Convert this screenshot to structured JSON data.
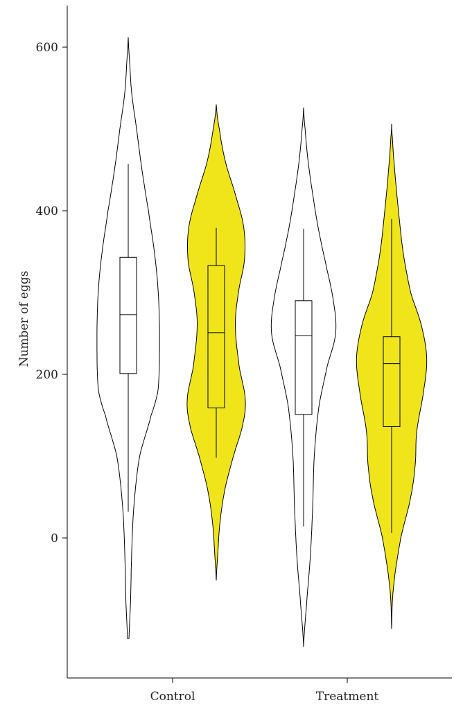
{
  "chart_data": {
    "type": "violin",
    "ylabel": "Number of eggs",
    "xlabel": "",
    "categories": [
      "Control",
      "Treatment"
    ],
    "ylim": [
      -165,
      640
    ],
    "yticks": [
      0,
      200,
      400,
      600
    ],
    "colors": {
      "white": "#ffffff",
      "yellow": "#f0e51a"
    },
    "groups": [
      {
        "category": "Control",
        "fill": "white",
        "range": [
          -123,
          612
        ],
        "density": [
          [
            -123,
            0.02
          ],
          [
            -80,
            0.06
          ],
          [
            -20,
            0.09
          ],
          [
            40,
            0.15
          ],
          [
            100,
            0.3
          ],
          [
            150,
            0.6
          ],
          [
            180,
            0.78
          ],
          [
            230,
            0.82
          ],
          [
            290,
            0.8
          ],
          [
            340,
            0.71
          ],
          [
            400,
            0.53
          ],
          [
            450,
            0.36
          ],
          [
            500,
            0.22
          ],
          [
            545,
            0.09
          ],
          [
            580,
            0.04
          ],
          [
            612,
            0.0
          ]
        ],
        "box": {
          "whisker_low": 32,
          "q1": 201,
          "median": 273,
          "q3": 343,
          "whisker_high": 457
        }
      },
      {
        "category": "Control",
        "fill": "yellow",
        "range": [
          -52,
          530
        ],
        "density": [
          [
            -52,
            0.0
          ],
          [
            -20,
            0.04
          ],
          [
            20,
            0.1
          ],
          [
            60,
            0.23
          ],
          [
            100,
            0.45
          ],
          [
            140,
            0.7
          ],
          [
            170,
            0.76
          ],
          [
            210,
            0.6
          ],
          [
            260,
            0.5
          ],
          [
            300,
            0.58
          ],
          [
            340,
            0.74
          ],
          [
            380,
            0.72
          ],
          [
            420,
            0.5
          ],
          [
            460,
            0.24
          ],
          [
            500,
            0.08
          ],
          [
            530,
            0.0
          ]
        ],
        "box": {
          "whisker_low": 98,
          "q1": 159,
          "median": 251,
          "q3": 333,
          "whisker_high": 379
        }
      },
      {
        "category": "Treatment",
        "fill": "white",
        "range": [
          -133,
          526
        ],
        "density": [
          [
            -133,
            0.0
          ],
          [
            -80,
            0.08
          ],
          [
            -20,
            0.18
          ],
          [
            40,
            0.24
          ],
          [
            100,
            0.28
          ],
          [
            160,
            0.4
          ],
          [
            210,
            0.62
          ],
          [
            250,
            0.84
          ],
          [
            290,
            0.78
          ],
          [
            340,
            0.56
          ],
          [
            380,
            0.38
          ],
          [
            420,
            0.24
          ],
          [
            460,
            0.12
          ],
          [
            500,
            0.04
          ],
          [
            526,
            0.0
          ]
        ],
        "box": {
          "whisker_low": 14,
          "q1": 151,
          "median": 247,
          "q3": 290,
          "whisker_high": 378
        }
      },
      {
        "category": "Treatment",
        "fill": "yellow",
        "range": [
          -111,
          506
        ],
        "density": [
          [
            -111,
            0.0
          ],
          [
            -60,
            0.05
          ],
          [
            0,
            0.24
          ],
          [
            50,
            0.5
          ],
          [
            90,
            0.62
          ],
          [
            130,
            0.66
          ],
          [
            180,
            0.84
          ],
          [
            220,
            0.92
          ],
          [
            260,
            0.78
          ],
          [
            300,
            0.5
          ],
          [
            350,
            0.3
          ],
          [
            400,
            0.18
          ],
          [
            450,
            0.08
          ],
          [
            490,
            0.02
          ],
          [
            506,
            0.0
          ]
        ],
        "box": {
          "whisker_low": 6,
          "q1": 136,
          "median": 213,
          "q3": 246,
          "whisker_high": 390
        }
      }
    ]
  }
}
